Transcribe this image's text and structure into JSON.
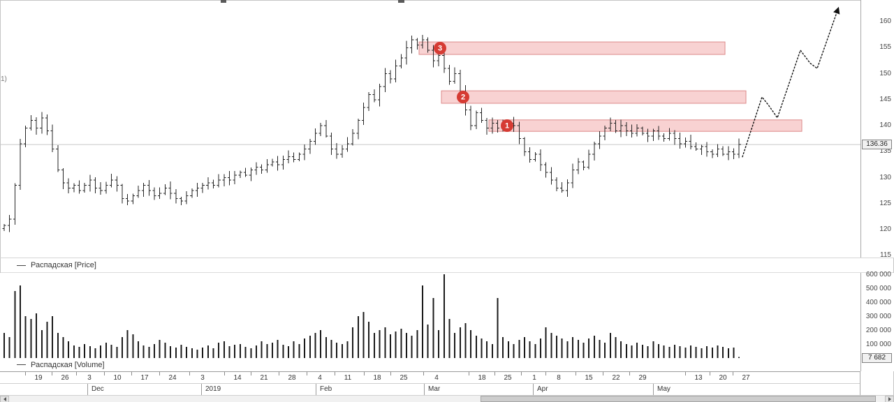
{
  "chart_data": {
    "type": "ohlc",
    "symbol": "Распадская",
    "price_panel": {
      "legend": "Распадская [Price]",
      "left_annotation": "1)",
      "y_ticks": [
        160,
        155,
        150,
        145,
        140,
        135,
        130,
        125,
        120,
        115
      ],
      "ylim": [
        114,
        161
      ],
      "current_price": "136.36",
      "current_price_value": 136.36,
      "closes": [
        120.8,
        122.0,
        128.5,
        136.5,
        139.5,
        141.0,
        139.5,
        141.5,
        139.0,
        135.5,
        131.5,
        129.0,
        128.0,
        128.5,
        127.5,
        128.5,
        129.5,
        128.0,
        127.5,
        128.5,
        129.5,
        128.5,
        126.0,
        125.5,
        126.5,
        127.5,
        128.5,
        127.5,
        126.5,
        127.0,
        128.0,
        127.0,
        126.0,
        125.5,
        126.5,
        127.5,
        128.0,
        128.5,
        129.0,
        128.5,
        129.5,
        130.0,
        129.5,
        130.5,
        131.0,
        130.5,
        131.5,
        132.0,
        131.5,
        132.5,
        133.0,
        132.5,
        133.5,
        134.0,
        133.5,
        134.5,
        135.5,
        137.0,
        138.5,
        140.0,
        138.0,
        135.5,
        134.5,
        135.5,
        136.5,
        138.5,
        141.0,
        143.5,
        146.0,
        145.0,
        147.5,
        150.0,
        149.0,
        151.5,
        153.0,
        155.0,
        156.5,
        155.5,
        156.5,
        154.5,
        152.5,
        153.5,
        151.0,
        148.5,
        150.0,
        146.5,
        143.0,
        140.0,
        142.5,
        141.0,
        139.5,
        140.5,
        139.5,
        140.0,
        140.5,
        140.0,
        137.5,
        135.0,
        133.5,
        134.5,
        132.5,
        131.0,
        129.5,
        128.0,
        127.5,
        129.0,
        131.5,
        133.0,
        132.0,
        134.5,
        136.5,
        138.0,
        139.5,
        140.5,
        139.0,
        140.0,
        139.0,
        138.5,
        139.5,
        138.5,
        138.0,
        139.0,
        138.0,
        137.5,
        138.5,
        137.5,
        136.5,
        137.0,
        136.0,
        135.5,
        136.0,
        135.0,
        134.5,
        135.5,
        134.5,
        135.0,
        134.5,
        136.36
      ]
    },
    "volume_panel": {
      "legend": "Распадская [Volume]",
      "y_ticks": [
        "600 000",
        "500 000",
        "400 000",
        "300 000",
        "200 000",
        "100 000"
      ],
      "y_tick_values": [
        600000,
        500000,
        400000,
        300000,
        200000,
        100000
      ],
      "last_volume": "7 682",
      "volumes": [
        180000,
        150000,
        480000,
        520000,
        300000,
        280000,
        320000,
        200000,
        260000,
        300000,
        180000,
        150000,
        120000,
        90000,
        80000,
        100000,
        85000,
        70000,
        90000,
        110000,
        95000,
        80000,
        150000,
        200000,
        170000,
        120000,
        90000,
        80000,
        100000,
        130000,
        110000,
        85000,
        75000,
        95000,
        80000,
        70000,
        60000,
        75000,
        90000,
        70000,
        110000,
        120000,
        85000,
        95000,
        100000,
        80000,
        70000,
        90000,
        120000,
        100000,
        110000,
        130000,
        95000,
        85000,
        120000,
        100000,
        140000,
        160000,
        180000,
        200000,
        150000,
        130000,
        110000,
        100000,
        120000,
        220000,
        300000,
        330000,
        260000,
        180000,
        200000,
        220000,
        170000,
        190000,
        210000,
        180000,
        160000,
        200000,
        520000,
        240000,
        430000,
        200000,
        600000,
        280000,
        180000,
        220000,
        250000,
        200000,
        160000,
        140000,
        120000,
        100000,
        430000,
        150000,
        120000,
        100000,
        130000,
        150000,
        120000,
        100000,
        140000,
        220000,
        180000,
        160000,
        140000,
        120000,
        150000,
        130000,
        110000,
        140000,
        160000,
        130000,
        110000,
        180000,
        150000,
        120000,
        100000,
        90000,
        110000,
        95000,
        85000,
        120000,
        100000,
        90000,
        80000,
        95000,
        85000,
        75000,
        90000,
        80000,
        70000,
        85000,
        75000,
        90000,
        80000,
        70000,
        75000,
        7682
      ]
    },
    "zones": [
      {
        "label": "3",
        "x1": 600,
        "x2": 1038,
        "price_top": 156.1,
        "price_bottom": 153.7,
        "badge_x": 630
      },
      {
        "label": "2",
        "x1": 632,
        "x2": 1068,
        "price_top": 146.7,
        "price_bottom": 144.3,
        "badge_x": 663
      },
      {
        "label": "1",
        "x1": 700,
        "x2": 1148,
        "price_top": 141.1,
        "price_bottom": 138.9,
        "badge_x": 726
      }
    ],
    "projection": [
      [
        1063,
        134.0
      ],
      [
        1091,
        145.5
      ],
      [
        1100,
        144.0
      ],
      [
        1113,
        141.5
      ],
      [
        1146,
        154.5
      ],
      [
        1160,
        152.0
      ],
      [
        1170,
        151.0
      ],
      [
        1200,
        162.5
      ]
    ],
    "x_axis": {
      "ticks": [
        {
          "label": "19",
          "x": 55
        },
        {
          "label": "26",
          "x": 93
        },
        {
          "label": "3",
          "x": 128
        },
        {
          "label": "10",
          "x": 168
        },
        {
          "label": "17",
          "x": 207
        },
        {
          "label": "24",
          "x": 247
        },
        {
          "label": "3",
          "x": 290
        },
        {
          "label": "14",
          "x": 340
        },
        {
          "label": "21",
          "x": 378
        },
        {
          "label": "28",
          "x": 418
        },
        {
          "label": "4",
          "x": 458
        },
        {
          "label": "11",
          "x": 498
        },
        {
          "label": "18",
          "x": 540
        },
        {
          "label": "25",
          "x": 578
        },
        {
          "label": "4",
          "x": 625
        },
        {
          "label": "18",
          "x": 690
        },
        {
          "label": "25",
          "x": 727
        },
        {
          "label": "1",
          "x": 765
        },
        {
          "label": "8",
          "x": 800
        },
        {
          "label": "15",
          "x": 843
        },
        {
          "label": "22",
          "x": 882
        },
        {
          "label": "29",
          "x": 920
        },
        {
          "label": "13",
          "x": 1000
        },
        {
          "label": "20",
          "x": 1035
        },
        {
          "label": "27",
          "x": 1068
        }
      ],
      "months": [
        {
          "label": "Dec",
          "x": 131,
          "boundary": 125
        },
        {
          "label": "2019",
          "x": 294,
          "boundary": 288
        },
        {
          "label": "Feb",
          "x": 458,
          "boundary": 452
        },
        {
          "label": "Mar",
          "x": 613,
          "boundary": 607
        },
        {
          "label": "Apr",
          "x": 769,
          "boundary": 763
        },
        {
          "label": "May",
          "x": 941,
          "boundary": 935
        }
      ]
    },
    "colors": {
      "bar": "#222222",
      "volume_bar": "#1a1a1a",
      "zone_fill": "#f6c3c3",
      "zone_border": "#dd8a8a",
      "badge": "#d63b33",
      "badge_text": "#ffffff",
      "current_price_line": "#c8c8c8",
      "projection": "#111111"
    }
  },
  "scrollbar": {
    "thumb_left": 688,
    "thumb_width": 566
  }
}
